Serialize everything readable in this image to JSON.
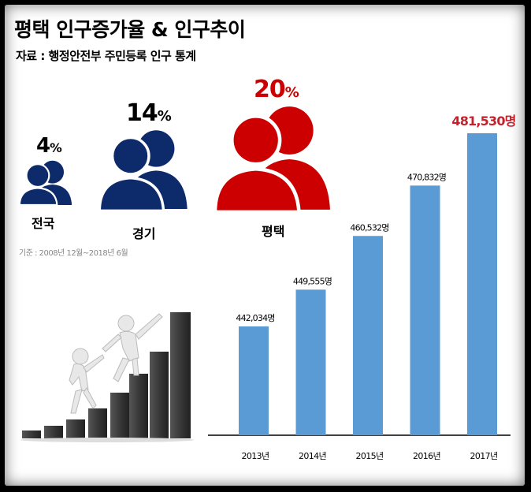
{
  "title": "평택 인구증가율 & 인구추이",
  "subtitle": "자료 : 행정안전부 주민등록 인구 통계",
  "growth": {
    "basis": "기준 : 2008년 12월~2018년 6월",
    "items": [
      {
        "region": "전국",
        "value": "4",
        "unit": "%",
        "color": "#0d2a6b"
      },
      {
        "region": "경기",
        "value": "14",
        "unit": "%",
        "color": "#0d2a6b"
      },
      {
        "region": "평택",
        "value": "20",
        "unit": "%",
        "color": "#cc0000"
      }
    ]
  },
  "colors": {
    "bar": "#5b9bd5",
    "highlight": "#c8202a",
    "navy": "#0d2a6b"
  },
  "chart_data": {
    "type": "bar",
    "categories": [
      "2013년",
      "2014년",
      "2015년",
      "2016년",
      "2017년"
    ],
    "values": [
      442034,
      449555,
      460532,
      470832,
      481530
    ],
    "data_labels": [
      "442,034명",
      "449,555명",
      "460,532명",
      "470,832명",
      "481,530명"
    ],
    "title": "",
    "xlabel": "",
    "ylabel": "",
    "highlight_index": 4
  }
}
